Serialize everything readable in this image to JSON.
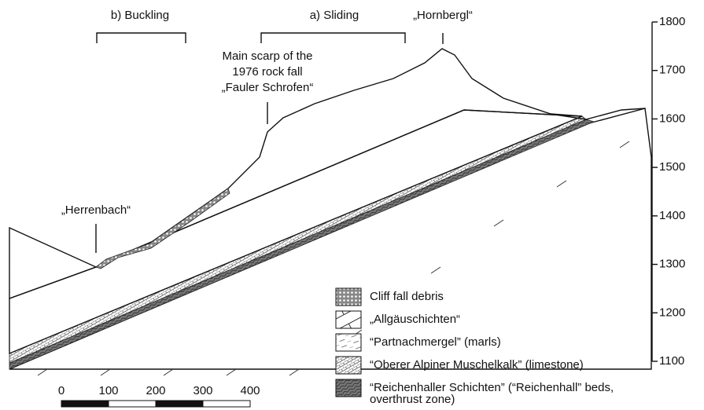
{
  "labels": {
    "buckling": "b) Buckling",
    "sliding": "a) Sliding",
    "hornbergl": "„Hornbergl“",
    "scarp": [
      "Main scarp of the",
      "1976 rock fall",
      "„Fauler Schrofen“"
    ],
    "herrenbach": "„Herrenbach“"
  },
  "elevation_axis": {
    "ticks": [
      1800,
      1700,
      1600,
      1500,
      1400,
      1300,
      1200,
      1100
    ]
  },
  "scale_bar": {
    "ticks": [
      0,
      100,
      200,
      300,
      400
    ]
  },
  "legend": [
    {
      "pattern": "debris",
      "lines": [
        "Cliff fall debris"
      ]
    },
    {
      "pattern": "allgaeu",
      "lines": [
        "„Allgäuschichten“"
      ]
    },
    {
      "pattern": "marl",
      "lines": [
        "“Partnachmergel” (marls)"
      ]
    },
    {
      "pattern": "lime",
      "lines": [
        "“Oberer Alpiner Muschelkalk” (limestone)"
      ]
    },
    {
      "pattern": "reich",
      "lines": [
        "“Reichenhaller Schichten” (“Reichenhall” beds,",
        "overthrust zone)"
      ]
    }
  ]
}
